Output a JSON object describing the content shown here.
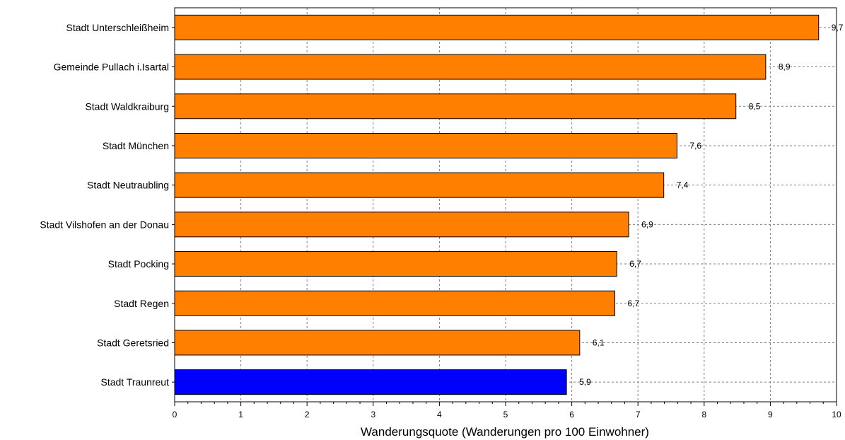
{
  "chart_data": {
    "type": "bar",
    "orientation": "horizontal",
    "categories": [
      "Stadt Unterschleißheim",
      "Gemeinde Pullach i.Isartal",
      "Stadt Waldkraiburg",
      "Stadt München",
      "Stadt Neutraubling",
      "Stadt Vilshofen an der Donau",
      "Stadt Pocking",
      "Stadt Regen",
      "Stadt Geretsried",
      "Stadt Traunreut"
    ],
    "values": [
      9.73,
      8.93,
      8.48,
      7.59,
      7.39,
      6.86,
      6.68,
      6.65,
      6.12,
      5.92
    ],
    "value_labels": [
      "9,7",
      "8,9",
      "8,5",
      "7,6",
      "7,4",
      "6,9",
      "6,7",
      "6,7",
      "6,1",
      "5,9"
    ],
    "highlight_category": "Stadt Traunreut",
    "xlabel": "Wanderungsquote (Wanderungen pro 100 Einwohner)",
    "ylabel": "",
    "xlim": [
      0,
      10
    ],
    "x_ticks": [
      "0",
      "1",
      "2",
      "3",
      "4",
      "5",
      "6",
      "7",
      "8",
      "9",
      "10"
    ],
    "grid": true,
    "colors": {
      "bar": "#ff8000",
      "highlight": "#0000ff",
      "grid": "#808080",
      "axis": "#000000"
    }
  }
}
